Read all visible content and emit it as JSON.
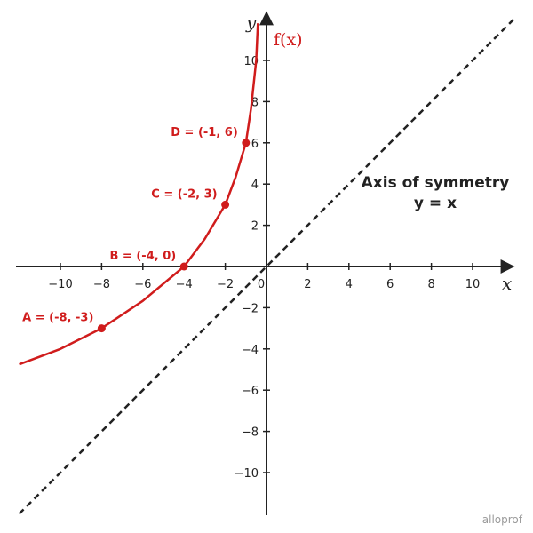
{
  "chart_data": {
    "type": "line",
    "title": "",
    "xlabel": "x",
    "ylabel": "y",
    "xlim": [
      -12,
      12
    ],
    "ylim": [
      -12,
      12
    ],
    "x_ticks": [
      -10,
      -8,
      -6,
      -4,
      -2,
      0,
      2,
      4,
      6,
      8,
      10
    ],
    "x_tick_labels": [
      "−10",
      "−8",
      "−6",
      "−4",
      "−2",
      "0",
      "2",
      "4",
      "6",
      "8",
      "10"
    ],
    "y_ticks": [
      -10,
      -8,
      -6,
      -4,
      -2,
      2,
      4,
      6,
      8,
      10
    ],
    "y_tick_labels": [
      "−10",
      "−8",
      "−6",
      "−4",
      "−2",
      "2",
      "4",
      "6",
      "8",
      "10"
    ],
    "grid": false,
    "series": [
      {
        "name": "f(x)",
        "color": "#d01c1c",
        "style": "solid",
        "x": [
          -12,
          -10,
          -8,
          -6,
          -4,
          -3,
          -2,
          -1.5,
          -1,
          -0.75,
          -0.5,
          -0.42
        ],
        "y": [
          -4.75,
          -4.0,
          -3.0,
          -1.67,
          0.0,
          1.33,
          3.0,
          4.33,
          6.0,
          7.67,
          10.0,
          11.8
        ]
      },
      {
        "name": "Axis of symmetry",
        "color": "#222222",
        "style": "dashed",
        "x": [
          -12,
          12
        ],
        "y": [
          -12,
          12
        ]
      }
    ],
    "points": [
      {
        "label": "A = (-8, -3)",
        "x": -8,
        "y": -3
      },
      {
        "label": "B = (-4, 0)",
        "x": -4,
        "y": 0
      },
      {
        "label": "C = (-2, 3)",
        "x": -2,
        "y": 3
      },
      {
        "label": "D = (-1, 6)",
        "x": -1,
        "y": 6
      }
    ],
    "annotations": {
      "function_label": "f(x)",
      "symmetry_line1": "Axis of symmetry",
      "symmetry_line2": "y = x"
    }
  },
  "brand": "alloprof"
}
